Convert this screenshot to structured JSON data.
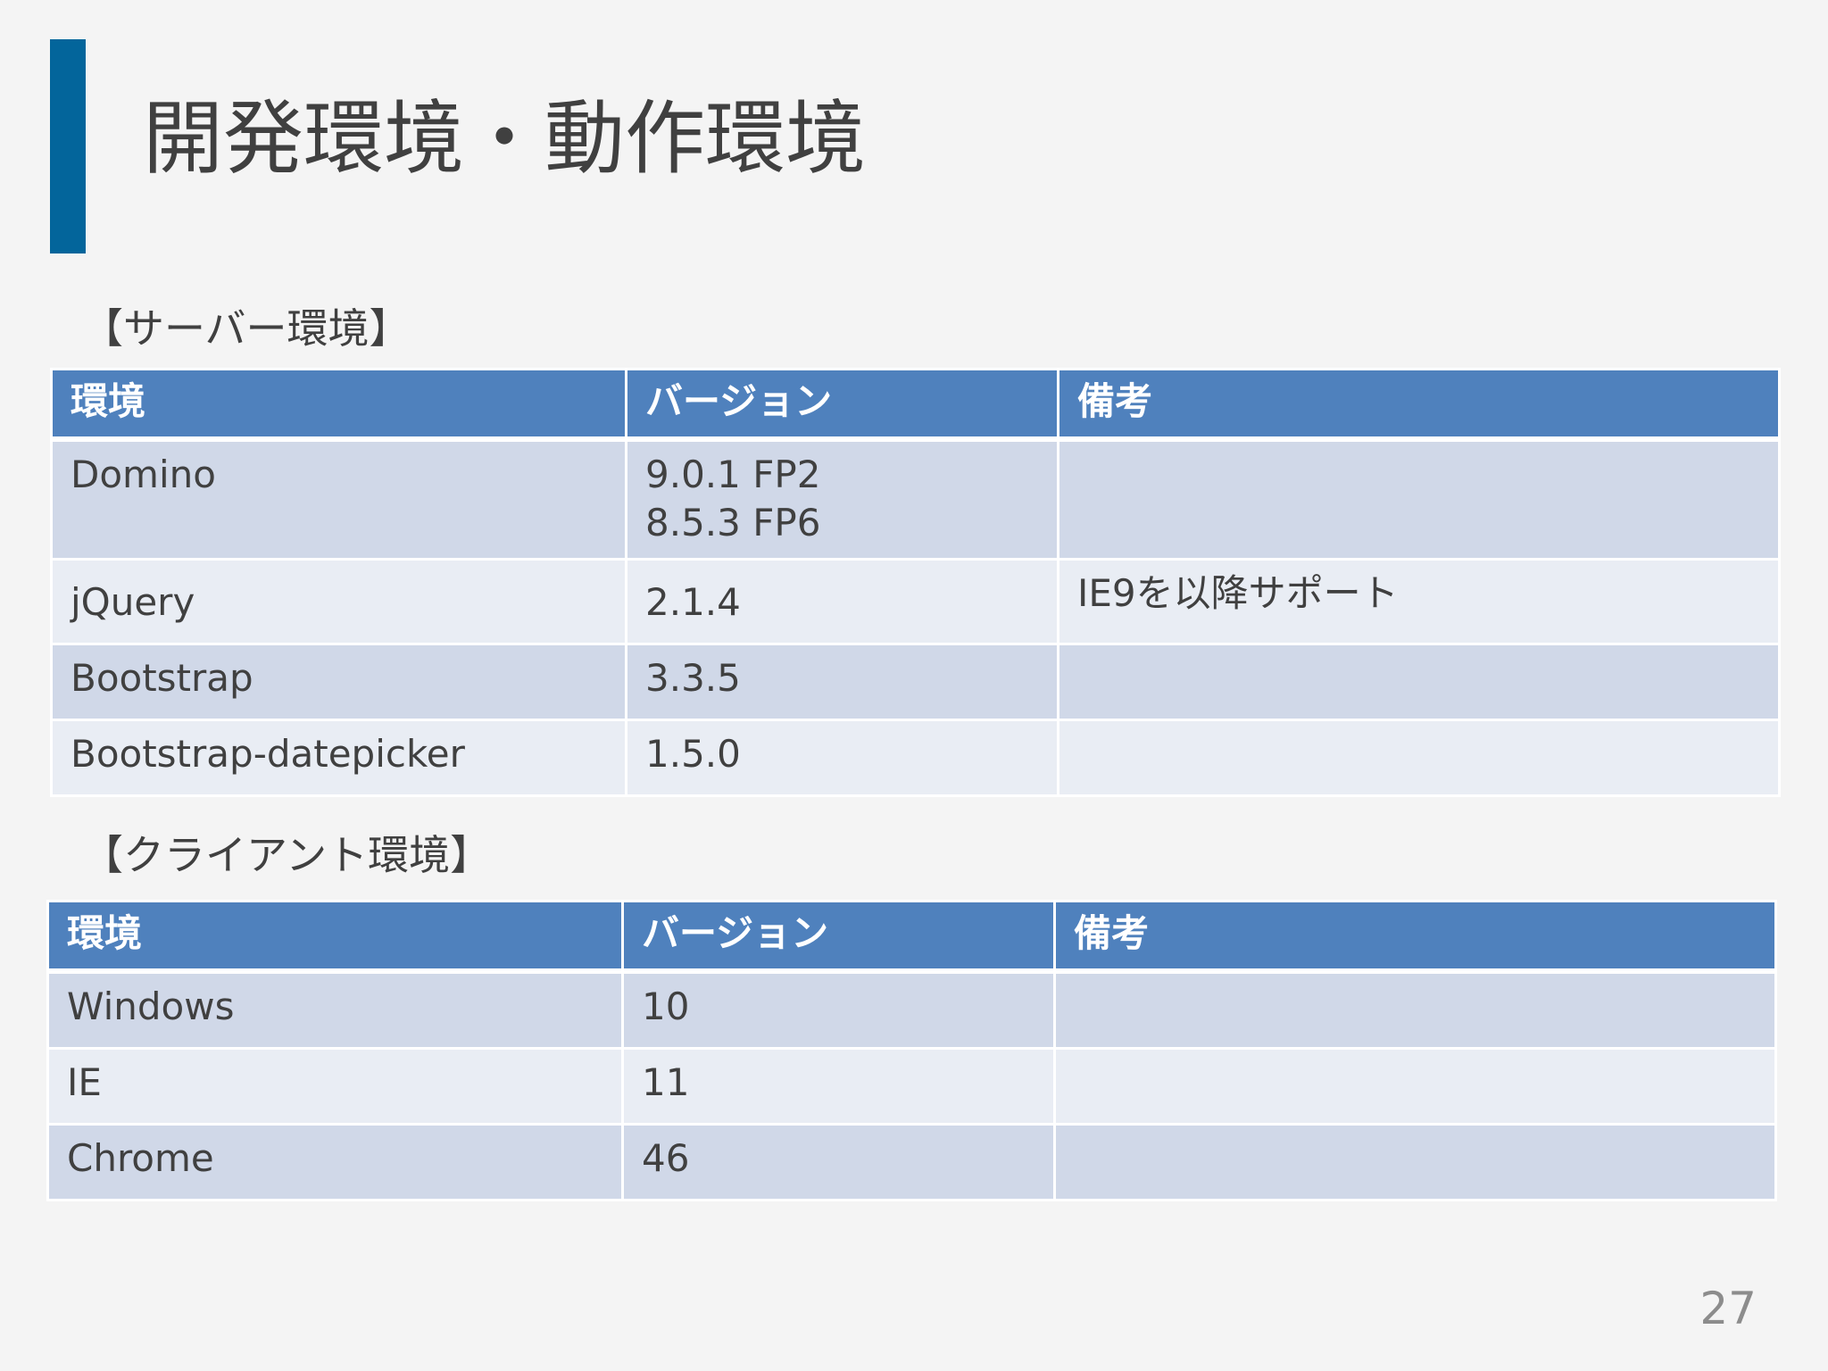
{
  "slide": {
    "title": "開発環境・動作環境",
    "page_number": "27",
    "accent_color": "#03659b"
  },
  "server_section": {
    "heading": "【サーバー環境】",
    "headers": [
      "環境",
      "バージョン",
      "備考"
    ],
    "rows": [
      {
        "env": "Domino",
        "version_line1": "9.0.1 FP2",
        "version_line2": "8.5.3 FP6",
        "note": ""
      },
      {
        "env": "jQuery",
        "version": "2.1.4",
        "note": "IE9を以降サポート"
      },
      {
        "env": "Bootstrap",
        "version": "3.3.5",
        "note": ""
      },
      {
        "env": "Bootstrap-datepicker",
        "version": "1.5.0",
        "note": ""
      }
    ]
  },
  "client_section": {
    "heading": "【クライアント環境】",
    "headers": [
      "環境",
      "バージョン",
      "備考"
    ],
    "rows": [
      {
        "env": "Windows",
        "version": "10",
        "note": ""
      },
      {
        "env": "IE",
        "version": "11",
        "note": ""
      },
      {
        "env": "Chrome",
        "version": "46",
        "note": ""
      }
    ]
  },
  "colors": {
    "header_bg": "#4f81bd",
    "row_dark": "#d0d8e8",
    "row_light": "#e9edf4"
  }
}
